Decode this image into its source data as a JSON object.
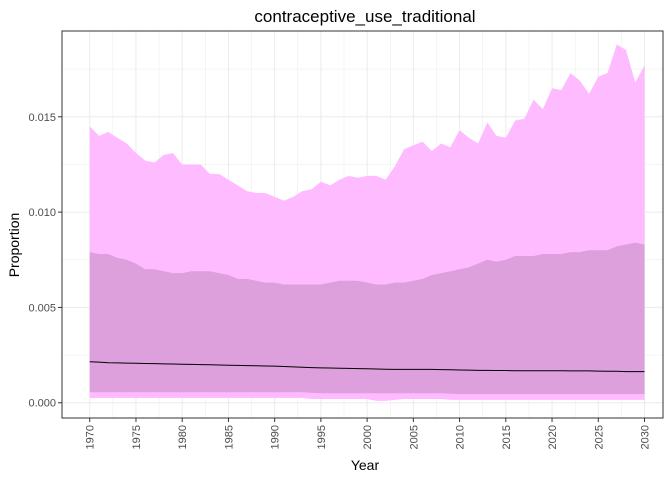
{
  "chart_data": {
    "type": "area",
    "title": "contraceptive_use_traditional",
    "xlabel": "Year",
    "ylabel": "Proportion",
    "xlim": [
      1967,
      2032
    ],
    "ylim": [
      -0.0008,
      0.0195
    ],
    "xticks": [
      1970,
      1975,
      1980,
      1985,
      1990,
      1995,
      2000,
      2005,
      2010,
      2015,
      2020,
      2025,
      2030
    ],
    "yticks": [
      0.0,
      0.005,
      0.01,
      0.015
    ],
    "ytick_labels": [
      "0.000",
      "0.005",
      "0.010",
      "0.015"
    ],
    "grid": true,
    "legend": "none",
    "colors": {
      "outer_band": "#ffbbff",
      "inner_band": "#dda0dd",
      "median_line": "#000000",
      "grid": "#ebebeb",
      "panel_border": "#333333"
    },
    "x": [
      1970,
      1971,
      1972,
      1973,
      1974,
      1975,
      1976,
      1977,
      1978,
      1979,
      1980,
      1981,
      1982,
      1983,
      1984,
      1985,
      1986,
      1987,
      1988,
      1989,
      1990,
      1991,
      1992,
      1993,
      1994,
      1995,
      1996,
      1997,
      1998,
      1999,
      2000,
      2001,
      2002,
      2003,
      2004,
      2005,
      2006,
      2007,
      2008,
      2009,
      2010,
      2011,
      2012,
      2013,
      2014,
      2015,
      2016,
      2017,
      2018,
      2019,
      2020,
      2021,
      2022,
      2023,
      2024,
      2025,
      2026,
      2027,
      2028,
      2029,
      2030
    ],
    "series": [
      {
        "role": "outer_upper",
        "values": [
          0.0145,
          0.014,
          0.0142,
          0.0139,
          0.0136,
          0.0131,
          0.0127,
          0.0126,
          0.013,
          0.0131,
          0.0125,
          0.0125,
          0.0125,
          0.012,
          0.012,
          0.0117,
          0.0114,
          0.0111,
          0.011,
          0.011,
          0.0108,
          0.0106,
          0.0108,
          0.0111,
          0.0112,
          0.0116,
          0.0114,
          0.0117,
          0.0119,
          0.0118,
          0.0119,
          0.0119,
          0.0117,
          0.0124,
          0.0133,
          0.0135,
          0.0137,
          0.0132,
          0.0136,
          0.0134,
          0.0143,
          0.0139,
          0.0136,
          0.0147,
          0.014,
          0.0139,
          0.0148,
          0.0149,
          0.0159,
          0.0154,
          0.0165,
          0.0164,
          0.0173,
          0.0169,
          0.0162,
          0.0171,
          0.0173,
          0.0188,
          0.0185,
          0.0168,
          0.0177
        ]
      },
      {
        "role": "inner_upper",
        "values": [
          0.0079,
          0.0078,
          0.0078,
          0.0076,
          0.0075,
          0.0073,
          0.007,
          0.007,
          0.0069,
          0.0068,
          0.0068,
          0.0069,
          0.0069,
          0.0069,
          0.0068,
          0.0067,
          0.0065,
          0.0065,
          0.0064,
          0.0063,
          0.0063,
          0.0062,
          0.0062,
          0.0062,
          0.0062,
          0.0062,
          0.0063,
          0.0064,
          0.0064,
          0.0064,
          0.0063,
          0.0062,
          0.0062,
          0.0063,
          0.0063,
          0.0064,
          0.0065,
          0.0067,
          0.0068,
          0.0069,
          0.007,
          0.0071,
          0.0073,
          0.0075,
          0.0074,
          0.0075,
          0.0077,
          0.0077,
          0.0077,
          0.0078,
          0.0078,
          0.0078,
          0.0079,
          0.0079,
          0.008,
          0.008,
          0.008,
          0.0082,
          0.0083,
          0.0084,
          0.0083
        ]
      },
      {
        "role": "median",
        "values": [
          0.00215,
          0.00213,
          0.0021,
          0.00209,
          0.00208,
          0.00207,
          0.00206,
          0.00205,
          0.00204,
          0.00203,
          0.00202,
          0.00201,
          0.002,
          0.00199,
          0.00198,
          0.00197,
          0.00196,
          0.00195,
          0.00194,
          0.00193,
          0.00192,
          0.0019,
          0.00188,
          0.00186,
          0.00184,
          0.00183,
          0.00182,
          0.00181,
          0.0018,
          0.00179,
          0.00178,
          0.00177,
          0.00176,
          0.00175,
          0.00175,
          0.00175,
          0.00175,
          0.00175,
          0.00174,
          0.00173,
          0.00172,
          0.00171,
          0.0017,
          0.0017,
          0.00169,
          0.00169,
          0.00168,
          0.00168,
          0.00168,
          0.00168,
          0.00168,
          0.00168,
          0.00167,
          0.00167,
          0.00167,
          0.00166,
          0.00165,
          0.00165,
          0.00163,
          0.00163,
          0.00163
        ]
      },
      {
        "role": "inner_lower",
        "values": [
          0.00055,
          0.00055,
          0.00055,
          0.00055,
          0.00055,
          0.00055,
          0.00055,
          0.00055,
          0.00055,
          0.00055,
          0.00055,
          0.00055,
          0.00055,
          0.00055,
          0.00055,
          0.00055,
          0.00055,
          0.00055,
          0.00055,
          0.00055,
          0.00055,
          0.00055,
          0.00055,
          0.00055,
          0.00052,
          0.0005,
          0.0005,
          0.0005,
          0.0005,
          0.0005,
          0.0005,
          0.0005,
          0.0005,
          0.0005,
          0.0005,
          0.0005,
          0.0005,
          0.0005,
          0.0005,
          0.00048,
          0.00045,
          0.00045,
          0.00045,
          0.00045,
          0.00045,
          0.00045,
          0.00045,
          0.00045,
          0.00045,
          0.00045,
          0.00045,
          0.00045,
          0.00045,
          0.00045,
          0.00045,
          0.00045,
          0.00045,
          0.00045,
          0.00045,
          0.00045,
          0.00045
        ]
      },
      {
        "role": "outer_lower",
        "values": [
          0.00025,
          0.00025,
          0.00025,
          0.00025,
          0.00025,
          0.00025,
          0.00025,
          0.00025,
          0.00025,
          0.00025,
          0.00025,
          0.00025,
          0.00025,
          0.00025,
          0.00025,
          0.00025,
          0.00025,
          0.00025,
          0.00025,
          0.00025,
          0.00025,
          0.00025,
          0.00025,
          0.00025,
          0.0002,
          0.0002,
          0.0002,
          0.0002,
          0.0002,
          0.0002,
          0.0002,
          0.0001,
          0.0001,
          0.00015,
          0.0002,
          0.0002,
          0.0002,
          0.0002,
          0.0002,
          0.00015,
          0.00015,
          0.00015,
          0.00015,
          0.00015,
          0.00015,
          0.00015,
          0.00015,
          0.00015,
          0.00015,
          0.00015,
          0.00015,
          0.00015,
          0.00015,
          0.00015,
          0.00015,
          0.00015,
          0.00015,
          0.00015,
          0.00015,
          0.00015,
          0.00015
        ]
      }
    ]
  }
}
